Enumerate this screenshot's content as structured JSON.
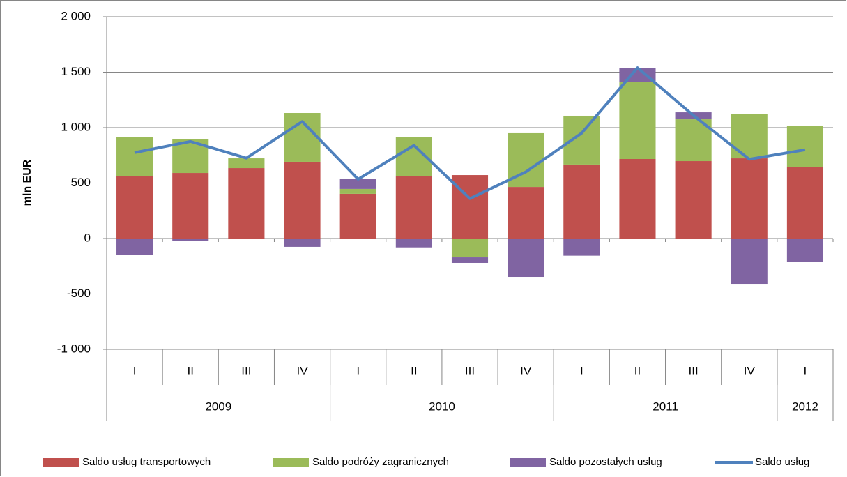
{
  "chart_data": {
    "type": "bar",
    "stacked": true,
    "y_axis_label": "mln EUR",
    "categories": [
      "I",
      "II",
      "III",
      "IV",
      "I",
      "II",
      "III",
      "IV",
      "I",
      "II",
      "III",
      "IV",
      "I"
    ],
    "groups": [
      {
        "label": "2009",
        "count": 4
      },
      {
        "label": "2010",
        "count": 4
      },
      {
        "label": "2011",
        "count": 4
      },
      {
        "label": "2012",
        "count": 1
      }
    ],
    "ylim": [
      -1000,
      2000
    ],
    "yticks": [
      {
        "value": -1000,
        "label": "-1 000"
      },
      -500,
      0,
      500,
      {
        "value": 1000,
        "label": "1 000"
      },
      {
        "value": 1500,
        "label": "1 500"
      },
      {
        "value": 2000,
        "label": "2 000"
      }
    ],
    "grid": true,
    "legend": "bottom",
    "series": [
      {
        "name": "Saldo usług transportowych",
        "color": "#c0504d",
        "values": [
          566,
          591,
          635,
          692,
          403,
          560,
          572,
          465,
          667,
          717,
          698,
          723,
          642
        ]
      },
      {
        "name": "Saldo podróży zagranicznych",
        "color": "#9bbb59",
        "values": [
          352,
          302,
          88,
          440,
          44,
          358,
          -170,
          485,
          440,
          698,
          377,
          397,
          371
        ]
      },
      {
        "name": "Saldo pozostałych usług",
        "color": "#8064a2",
        "values": [
          -145,
          -20,
          0,
          -75,
          88,
          -80,
          -50,
          -346,
          -155,
          120,
          63,
          -409,
          -213
        ]
      },
      {
        "name": "Saldo usług",
        "color": "#4f81bd",
        "type": "line",
        "values": [
          775,
          875,
          725,
          1055,
          535,
          840,
          360,
          600,
          950,
          1540,
          1110,
          715,
          800
        ]
      }
    ]
  }
}
